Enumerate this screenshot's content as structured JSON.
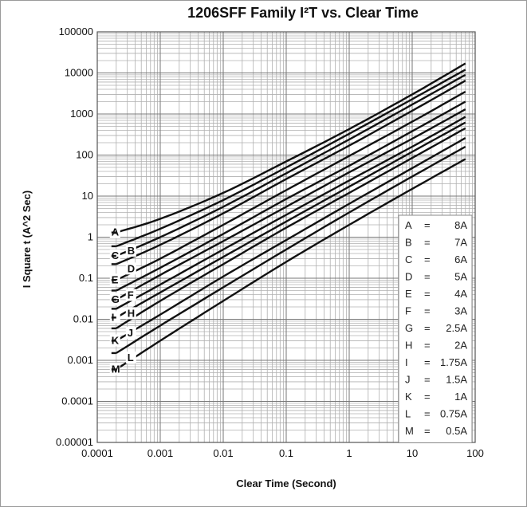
{
  "chart_data": {
    "type": "line",
    "title": "1206SFF Family I²T vs. Clear Time",
    "xlabel": "Clear Time (Second)",
    "ylabel": "I Square t (A^2 Sec)",
    "xscale": "log",
    "yscale": "log",
    "xlim": [
      0.0001,
      100
    ],
    "ylim": [
      1e-05,
      100000
    ],
    "x_ticks": [
      "0.0001",
      "0.001",
      "0.01",
      "0.1",
      "1",
      "10",
      "100"
    ],
    "y_ticks": [
      "100000",
      "10000",
      "1000",
      "100",
      "10",
      "1",
      "0.1",
      "0.01",
      "0.001",
      "0.0001",
      "0.00001"
    ],
    "grid": true,
    "legend_position": "bottom-right",
    "series": [
      {
        "name": "A",
        "label": "A",
        "legend_eq": "=",
        "legend_value": "8A",
        "x": [
          0.0002,
          0.001,
          0.01,
          0.1,
          1,
          10,
          70
        ],
        "y": [
          1.3,
          2.8,
          12,
          70,
          430,
          3000,
          17000
        ]
      },
      {
        "name": "B",
        "label": "B",
        "legend_eq": "=",
        "legend_value": "7A",
        "x": [
          0.0002,
          0.001,
          0.01,
          0.1,
          1,
          10,
          70
        ],
        "y": [
          0.6,
          1.6,
          8,
          50,
          330,
          2300,
          12000
        ]
      },
      {
        "name": "C",
        "label": "C",
        "legend_eq": "=",
        "legend_value": "6A",
        "x": [
          0.0002,
          0.001,
          0.01,
          0.1,
          1,
          10,
          70
        ],
        "y": [
          0.35,
          1.0,
          5.5,
          36,
          240,
          1700,
          9000
        ]
      },
      {
        "name": "D",
        "label": "D",
        "legend_eq": "=",
        "legend_value": "5A",
        "x": [
          0.0002,
          0.001,
          0.01,
          0.1,
          1,
          10,
          70
        ],
        "y": [
          0.22,
          0.65,
          3.8,
          26,
          170,
          1200,
          6500
        ]
      },
      {
        "name": "E",
        "label": "E",
        "legend_eq": "=",
        "legend_value": "4A",
        "x": [
          0.0002,
          0.001,
          0.01,
          0.1,
          1,
          10,
          70
        ],
        "y": [
          0.09,
          0.3,
          2.0,
          14,
          95,
          650,
          3500
        ]
      },
      {
        "name": "F",
        "label": "F",
        "legend_eq": "=",
        "legend_value": "3A",
        "x": [
          0.0002,
          0.001,
          0.01,
          0.1,
          1,
          10,
          70
        ],
        "y": [
          0.05,
          0.18,
          1.2,
          8.5,
          55,
          380,
          2000
        ]
      },
      {
        "name": "G",
        "label": "G",
        "legend_eq": "=",
        "legend_value": "2.5A",
        "x": [
          0.0002,
          0.001,
          0.01,
          0.1,
          1,
          10,
          70
        ],
        "y": [
          0.03,
          0.12,
          0.8,
          5.5,
          38,
          250,
          1300
        ]
      },
      {
        "name": "H",
        "label": "H",
        "legend_eq": "=",
        "legend_value": "2A",
        "x": [
          0.0002,
          0.001,
          0.01,
          0.1,
          1,
          10,
          70
        ],
        "y": [
          0.018,
          0.07,
          0.5,
          3.5,
          24,
          160,
          850
        ]
      },
      {
        "name": "I",
        "label": "I",
        "legend_eq": "=",
        "legend_value": "1.75A",
        "x": [
          0.0002,
          0.001,
          0.01,
          0.1,
          1,
          10,
          70
        ],
        "y": [
          0.011,
          0.045,
          0.33,
          2.4,
          17,
          120,
          620
        ]
      },
      {
        "name": "J",
        "label": "J",
        "legend_eq": "=",
        "legend_value": "1.5A",
        "x": [
          0.0002,
          0.001,
          0.01,
          0.1,
          1,
          10,
          70
        ],
        "y": [
          0.006,
          0.028,
          0.22,
          1.7,
          12,
          85,
          450
        ]
      },
      {
        "name": "K",
        "label": "K",
        "legend_eq": "=",
        "legend_value": "1A",
        "x": [
          0.0002,
          0.001,
          0.01,
          0.1,
          1,
          10,
          70
        ],
        "y": [
          0.003,
          0.013,
          0.11,
          0.85,
          6.5,
          48,
          260
        ]
      },
      {
        "name": "L",
        "label": "L",
        "legend_eq": "=",
        "legend_value": "0.75A",
        "x": [
          0.0002,
          0.001,
          0.01,
          0.1,
          1,
          10,
          70
        ],
        "y": [
          0.0015,
          0.007,
          0.06,
          0.5,
          4,
          30,
          160
        ]
      },
      {
        "name": "M",
        "label": "M",
        "legend_eq": "=",
        "legend_value": "0.5A",
        "x": [
          0.0002,
          0.001,
          0.01,
          0.1,
          1,
          10,
          70
        ],
        "y": [
          0.0006,
          0.003,
          0.028,
          0.25,
          2.0,
          15,
          80
        ]
      }
    ]
  }
}
